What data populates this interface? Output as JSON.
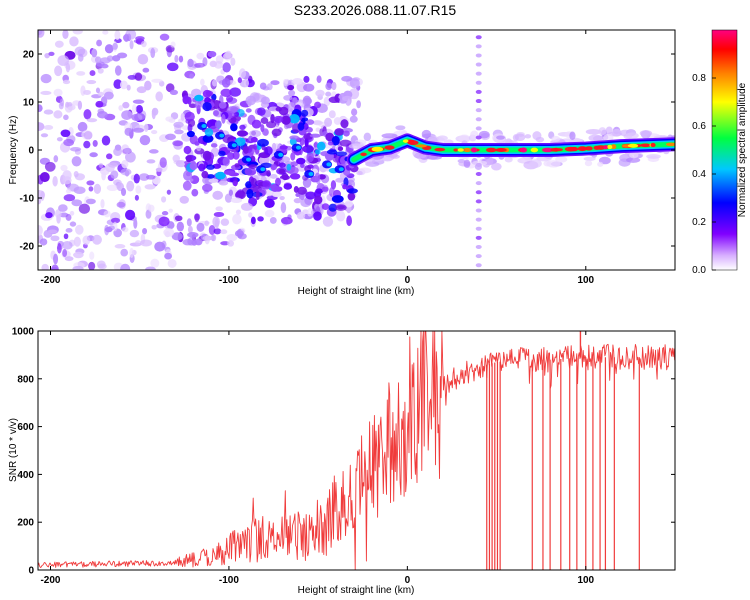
{
  "title": "S233.2026.088.11.07.R15",
  "chart_data": [
    {
      "type": "heatmap",
      "title": "S233.2026.088.11.07.R15",
      "xlabel": "Height of straight line (km)",
      "ylabel": "Frequency (Hz)",
      "xlim": [
        -207,
        150
      ],
      "ylim": [
        -25,
        25
      ],
      "xticks": [
        -200,
        -100,
        0,
        100
      ],
      "yticks": [
        -20,
        -10,
        0,
        10,
        20
      ],
      "ridge_line": {
        "x": [
          -125,
          -110,
          -100,
          -90,
          -80,
          -70,
          -60,
          -50,
          -40,
          -34,
          -30,
          -25,
          -20,
          -10,
          0,
          10,
          20,
          40,
          60,
          80,
          100,
          120,
          150
        ],
        "y": [
          4,
          3,
          3,
          0,
          -3,
          1,
          0,
          -5,
          -4,
          -3,
          -2,
          -1,
          0,
          0.5,
          2,
          0.5,
          0,
          0,
          0,
          0,
          0.3,
          0.8,
          1.2
        ]
      },
      "vertical_stripe_x": 40,
      "colorbar": {
        "label": "Normalized spectral amplitude",
        "ticks": [
          "0.0",
          "0.2",
          "0.4",
          "0.6",
          "0.8"
        ],
        "colors": [
          "#ffffff",
          "#8000ff",
          "#0000ff",
          "#00ffff",
          "#00ff00",
          "#ffff00",
          "#ff8000",
          "#ff0000",
          "#ff0080"
        ]
      }
    },
    {
      "type": "line",
      "xlabel": "Height of straight line (km)",
      "ylabel": "SNR (10 * v/v)",
      "xlim": [
        -207,
        150
      ],
      "ylim": [
        0,
        1000
      ],
      "xticks": [
        -200,
        -100,
        0,
        100
      ],
      "yticks": [
        0,
        200,
        400,
        600,
        800,
        1000
      ],
      "color": "#f03c3c",
      "trend": {
        "x": [
          -207,
          -170,
          -130,
          -110,
          -90,
          -70,
          -50,
          -40,
          -34,
          -30,
          -20,
          -10,
          0,
          10,
          20,
          30,
          40,
          50,
          60,
          80,
          100,
          120,
          150
        ],
        "y": [
          20,
          25,
          30,
          60,
          120,
          140,
          150,
          250,
          280,
          320,
          420,
          520,
          620,
          720,
          780,
          820,
          850,
          870,
          880,
          880,
          890,
          890,
          890
        ]
      },
      "dropouts_x": [
        44.5,
        46,
        47.5,
        49,
        50.5,
        52,
        70,
        76,
        80,
        86,
        91,
        95,
        100,
        104,
        108,
        111,
        116,
        130
      ],
      "peak": {
        "x": 97,
        "y": 1000
      }
    }
  ]
}
